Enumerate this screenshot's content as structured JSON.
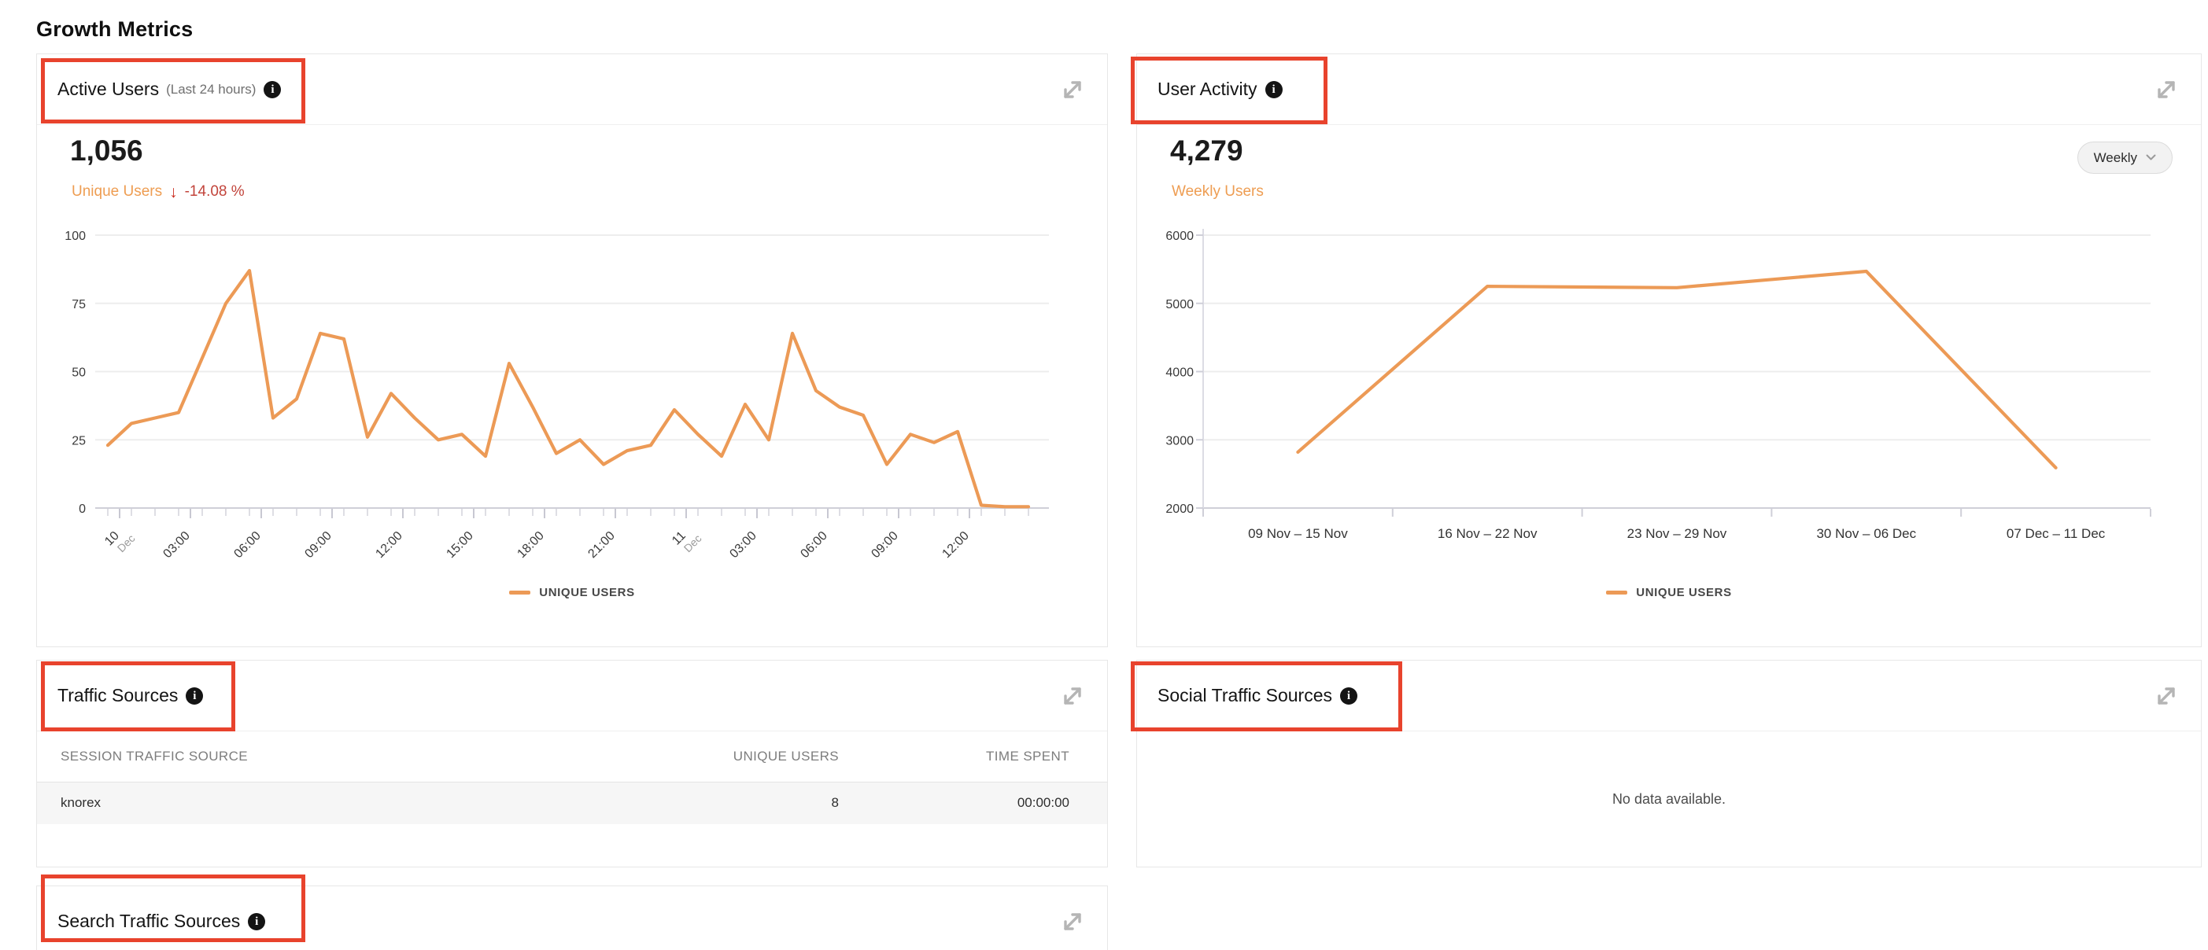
{
  "page": {
    "title": "Growth Metrics"
  },
  "colors": {
    "series_line": "#EC9A56",
    "metric_label_orange": "#EE9D52",
    "delta_negative_red": "#C2443B",
    "delta_arrow_red": "#CB2D20",
    "annotation_red": "#E8432D"
  },
  "panels": {
    "active_users": {
      "title": "Active Users",
      "subtitle": "(Last 24 hours)",
      "metric_value": "1,056",
      "metric_label": "Unique Users",
      "delta_arrow": "↓",
      "delta": "-14.08 %",
      "legend": "UNIQUE USERS"
    },
    "user_activity": {
      "title": "User Activity",
      "metric_value": "4,279",
      "metric_label": "Weekly Users",
      "dropdown_value": "Weekly",
      "legend": "UNIQUE USERS"
    },
    "traffic_sources": {
      "title": "Traffic Sources",
      "table": {
        "headers": [
          "SESSION TRAFFIC SOURCE",
          "UNIQUE USERS",
          "TIME SPENT"
        ],
        "rows": [
          [
            "knorex",
            "8",
            "00:00:00"
          ]
        ]
      }
    },
    "social_traffic_sources": {
      "title": "Social Traffic Sources",
      "empty_message": "No data available."
    },
    "search_traffic_sources": {
      "title": "Search Traffic Sources"
    }
  },
  "chart_data": [
    {
      "type": "line",
      "title": "Active Users (Last 24 hours)",
      "xlabel": "",
      "ylabel": "",
      "ylim": [
        0,
        100
      ],
      "yticks": [
        0,
        25,
        50,
        75,
        100
      ],
      "grid": true,
      "legend_position": "bottom",
      "series": [
        {
          "name": "UNIQUE USERS",
          "values": [
            23,
            31,
            33,
            35,
            55,
            75,
            87,
            33,
            40,
            64,
            62,
            26,
            42,
            33,
            25,
            27,
            19,
            53,
            37,
            20,
            25,
            16,
            21,
            23,
            36,
            27,
            19,
            38,
            25,
            64,
            43,
            37,
            34,
            16,
            27,
            24,
            28,
            1,
            0.5,
            0.5
          ]
        }
      ],
      "x_ticks": [
        {
          "pos": 0.5,
          "label": "10",
          "sublabel": "Dec"
        },
        {
          "pos": 3.5,
          "label": "03:00"
        },
        {
          "pos": 6.5,
          "label": "06:00"
        },
        {
          "pos": 9.5,
          "label": "09:00"
        },
        {
          "pos": 12.5,
          "label": "12:00"
        },
        {
          "pos": 15.5,
          "label": "15:00"
        },
        {
          "pos": 18.5,
          "label": "18:00"
        },
        {
          "pos": 21.5,
          "label": "21:00"
        },
        {
          "pos": 24.5,
          "label": "11",
          "sublabel": "Dec"
        },
        {
          "pos": 27.5,
          "label": "03:00"
        },
        {
          "pos": 30.5,
          "label": "06:00"
        },
        {
          "pos": 33.5,
          "label": "09:00"
        },
        {
          "pos": 36.5,
          "label": "12:00"
        }
      ]
    },
    {
      "type": "line",
      "title": "User Activity (Weekly)",
      "xlabel": "",
      "ylabel": "",
      "ylim": [
        2000,
        6000
      ],
      "yticks": [
        2000,
        3000,
        4000,
        5000,
        6000
      ],
      "grid": true,
      "legend_position": "bottom",
      "categories": [
        "09 Nov – 15 Nov",
        "16 Nov – 22 Nov",
        "23 Nov – 29 Nov",
        "30 Nov – 06 Dec",
        "07 Dec – 11 Dec"
      ],
      "series": [
        {
          "name": "UNIQUE USERS",
          "values": [
            2820,
            5250,
            5230,
            5470,
            2590
          ]
        }
      ]
    }
  ]
}
